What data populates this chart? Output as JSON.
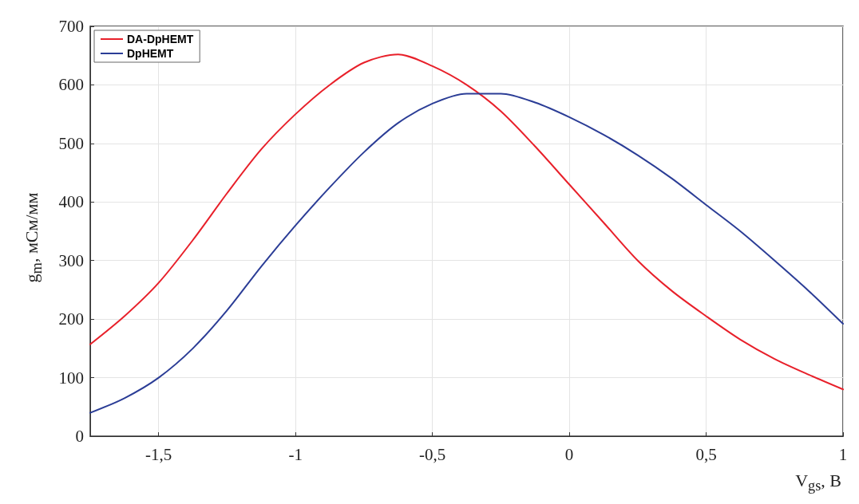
{
  "chart_data": {
    "type": "line",
    "xlabel": "V$_{gs}$, В",
    "ylabel": "g$_{m}$, мСм/мм",
    "xlim": [
      -1.75,
      1
    ],
    "xticks": [
      {
        "value": -1.5,
        "label": "-1,5"
      },
      -1,
      {
        "value": -0.5,
        "label": "-0,5"
      },
      0,
      {
        "value": 0.5,
        "label": "0,5"
      },
      1
    ],
    "ylim": [
      0,
      700
    ],
    "yticks": [
      0,
      100,
      200,
      300,
      400,
      500,
      600,
      700
    ],
    "grid": true,
    "legend": "top left",
    "marker": "none",
    "line_style": "solid",
    "series": [
      {
        "name": "DA-DpHEMT",
        "color": "#e8202a",
        "x": [
          -1.75,
          -1.625,
          -1.5,
          -1.375,
          -1.25,
          -1.125,
          -1,
          -0.875,
          -0.75,
          -0.625,
          -0.5,
          -0.375,
          -0.25,
          -0.125,
          0,
          0.125,
          0.25,
          0.375,
          0.5,
          0.625,
          0.75,
          0.875,
          1
        ],
        "values": [
          157,
          205,
          262,
          335,
          415,
          490,
          550,
          600,
          638,
          652,
          632,
          600,
          555,
          495,
          430,
          365,
          300,
          248,
          205,
          165,
          132,
          105,
          80
        ]
      },
      {
        "name": "DpHEMT",
        "color": "#2b3d96",
        "x": [
          -1.75,
          -1.625,
          -1.5,
          -1.375,
          -1.25,
          -1.125,
          -1,
          -0.875,
          -0.75,
          -0.625,
          -0.5,
          -0.375,
          -0.25,
          -0.125,
          0,
          0.125,
          0.25,
          0.375,
          0.5,
          0.625,
          0.75,
          0.875,
          1
        ],
        "values": [
          40,
          65,
          100,
          150,
          215,
          290,
          360,
          425,
          485,
          535,
          568,
          585,
          585,
          570,
          545,
          515,
          480,
          440,
          395,
          350,
          300,
          248,
          192
        ]
      }
    ]
  }
}
